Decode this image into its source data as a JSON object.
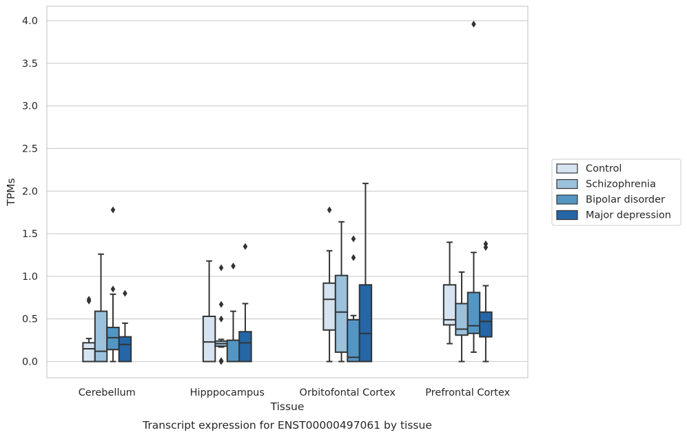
{
  "caption": "Transcript expression for ENST00000497061 by tissue",
  "chart_data": {
    "type": "box",
    "title": "",
    "xlabel": "Tissue",
    "ylabel": "TPMs",
    "ylim": [
      -0.19,
      4.17
    ],
    "yticks": [
      0.0,
      0.5,
      1.0,
      1.5,
      2.0,
      2.5,
      3.0,
      3.5,
      4.0
    ],
    "ytick_labels": [
      "0.0",
      "0.5",
      "1.0",
      "1.5",
      "2.0",
      "2.5",
      "3.0",
      "3.5",
      "4.0"
    ],
    "grid": "horizontal",
    "legend_position": "right",
    "categories": [
      "Cerebellum",
      "Hipppocampus",
      "Orbitofontal Cortex",
      "Prefrontal Cortex"
    ],
    "series": [
      {
        "name": "Control",
        "color": "#d6e3f0",
        "boxes": [
          {
            "whislo": 0.0,
            "q1": 0.0,
            "med": 0.15,
            "q3": 0.22,
            "whishi": 0.27,
            "fliers": [
              0.71,
              0.73
            ]
          },
          {
            "whislo": 0.0,
            "q1": 0.0,
            "med": 0.23,
            "q3": 0.53,
            "whishi": 1.18,
            "fliers": []
          },
          {
            "whislo": 0.0,
            "q1": 0.37,
            "med": 0.73,
            "q3": 0.92,
            "whishi": 1.3,
            "fliers": [
              1.78
            ]
          },
          {
            "whislo": 0.21,
            "q1": 0.43,
            "med": 0.49,
            "q3": 0.9,
            "whishi": 1.4,
            "fliers": []
          }
        ]
      },
      {
        "name": "Schizophrenia",
        "color": "#9bc1db",
        "boxes": [
          {
            "whislo": 0.0,
            "q1": 0.0,
            "med": 0.12,
            "q3": 0.59,
            "whishi": 1.26,
            "fliers": []
          },
          {
            "whislo": 0.17,
            "q1": 0.18,
            "med": 0.21,
            "q3": 0.24,
            "whishi": 0.26,
            "fliers": [
              0.0,
              0.01,
              0.5,
              0.67,
              1.1
            ]
          },
          {
            "whislo": 0.0,
            "q1": 0.11,
            "med": 0.58,
            "q3": 1.01,
            "whishi": 1.64,
            "fliers": []
          },
          {
            "whislo": 0.0,
            "q1": 0.31,
            "med": 0.38,
            "q3": 0.68,
            "whishi": 1.05,
            "fliers": []
          }
        ]
      },
      {
        "name": "Bipolar disorder",
        "color": "#5396c4",
        "boxes": [
          {
            "whislo": 0.0,
            "q1": 0.14,
            "med": 0.28,
            "q3": 0.4,
            "whishi": 0.79,
            "fliers": [
              0.85,
              1.78
            ]
          },
          {
            "whislo": 0.0,
            "q1": 0.0,
            "med": 0.0,
            "q3": 0.25,
            "whishi": 0.59,
            "fliers": [
              1.12
            ]
          },
          {
            "whislo": 0.0,
            "q1": 0.0,
            "med": 0.05,
            "q3": 0.49,
            "whishi": 0.54,
            "fliers": [
              1.22,
              1.44
            ]
          },
          {
            "whislo": 0.11,
            "q1": 0.33,
            "med": 0.42,
            "q3": 0.81,
            "whishi": 1.28,
            "fliers": [
              3.96
            ]
          }
        ]
      },
      {
        "name": "Major depression",
        "color": "#2466a6",
        "boxes": [
          {
            "whislo": 0.0,
            "q1": 0.0,
            "med": 0.2,
            "q3": 0.29,
            "whishi": 0.45,
            "fliers": [
              0.8
            ]
          },
          {
            "whislo": 0.0,
            "q1": 0.0,
            "med": 0.22,
            "q3": 0.35,
            "whishi": 0.68,
            "fliers": [
              1.35
            ]
          },
          {
            "whislo": 0.0,
            "q1": 0.0,
            "med": 0.33,
            "q3": 0.9,
            "whishi": 2.09,
            "fliers": []
          },
          {
            "whislo": 0.0,
            "q1": 0.29,
            "med": 0.47,
            "q3": 0.58,
            "whishi": 0.89,
            "fliers": [
              1.34,
              1.38
            ]
          }
        ]
      }
    ]
  }
}
